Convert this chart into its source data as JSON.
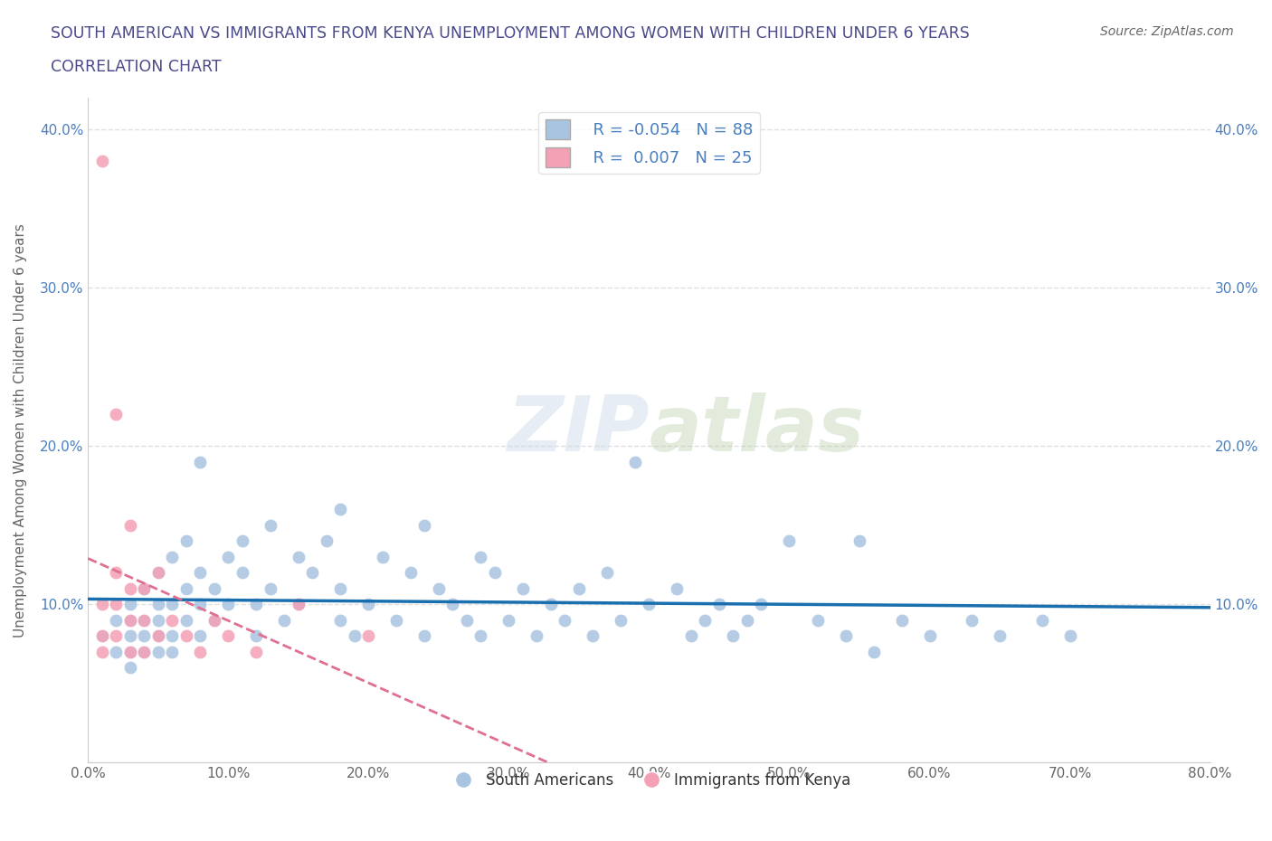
{
  "title_line1": "SOUTH AMERICAN VS IMMIGRANTS FROM KENYA UNEMPLOYMENT AMONG WOMEN WITH CHILDREN UNDER 6 YEARS",
  "title_line2": "CORRELATION CHART",
  "source": "Source: ZipAtlas.com",
  "ylabel": "Unemployment Among Women with Children Under 6 years",
  "xlim": [
    0.0,
    0.8
  ],
  "ylim": [
    0.0,
    0.42
  ],
  "xticks": [
    0.0,
    0.1,
    0.2,
    0.3,
    0.4,
    0.5,
    0.6,
    0.7,
    0.8
  ],
  "xticklabels": [
    "0.0%",
    "10.0%",
    "20.0%",
    "30.0%",
    "40.0%",
    "50.0%",
    "60.0%",
    "70.0%",
    "80.0%"
  ],
  "yticks": [
    0.0,
    0.1,
    0.2,
    0.3,
    0.4
  ],
  "yticklabels": [
    "",
    "10.0%",
    "20.0%",
    "30.0%",
    "40.0%"
  ],
  "blue_color": "#a8c4e0",
  "pink_color": "#f4a0b5",
  "blue_line_color": "#1a6faf",
  "pink_line_color": "#e07090",
  "R_blue": -0.054,
  "N_blue": 88,
  "R_pink": 0.007,
  "N_pink": 25,
  "watermark_zip": "ZIP",
  "watermark_atlas": "atlas",
  "title_color": "#4a4a8a",
  "axis_color": "#666666",
  "grid_color": "#e0e0e0",
  "blue_scatter_x": [
    0.01,
    0.02,
    0.02,
    0.03,
    0.03,
    0.03,
    0.03,
    0.03,
    0.04,
    0.04,
    0.04,
    0.04,
    0.05,
    0.05,
    0.05,
    0.05,
    0.05,
    0.06,
    0.06,
    0.06,
    0.06,
    0.07,
    0.07,
    0.07,
    0.08,
    0.08,
    0.08,
    0.09,
    0.09,
    0.1,
    0.1,
    0.11,
    0.11,
    0.12,
    0.12,
    0.13,
    0.13,
    0.14,
    0.15,
    0.15,
    0.16,
    0.17,
    0.18,
    0.18,
    0.19,
    0.2,
    0.21,
    0.22,
    0.23,
    0.24,
    0.25,
    0.26,
    0.27,
    0.28,
    0.28,
    0.29,
    0.3,
    0.31,
    0.32,
    0.33,
    0.34,
    0.35,
    0.36,
    0.37,
    0.38,
    0.4,
    0.42,
    0.43,
    0.44,
    0.45,
    0.46,
    0.47,
    0.48,
    0.5,
    0.52,
    0.54,
    0.56,
    0.58,
    0.6,
    0.63,
    0.65,
    0.68,
    0.7,
    0.55,
    0.39,
    0.24,
    0.18,
    0.08
  ],
  "blue_scatter_y": [
    0.08,
    0.09,
    0.07,
    0.1,
    0.08,
    0.07,
    0.09,
    0.06,
    0.11,
    0.08,
    0.09,
    0.07,
    0.12,
    0.09,
    0.08,
    0.1,
    0.07,
    0.13,
    0.1,
    0.08,
    0.07,
    0.14,
    0.11,
    0.09,
    0.12,
    0.1,
    0.08,
    0.11,
    0.09,
    0.13,
    0.1,
    0.14,
    0.12,
    0.1,
    0.08,
    0.15,
    0.11,
    0.09,
    0.13,
    0.1,
    0.12,
    0.14,
    0.09,
    0.11,
    0.08,
    0.1,
    0.13,
    0.09,
    0.12,
    0.08,
    0.11,
    0.1,
    0.09,
    0.13,
    0.08,
    0.12,
    0.09,
    0.11,
    0.08,
    0.1,
    0.09,
    0.11,
    0.08,
    0.12,
    0.09,
    0.1,
    0.11,
    0.08,
    0.09,
    0.1,
    0.08,
    0.09,
    0.1,
    0.14,
    0.09,
    0.08,
    0.07,
    0.09,
    0.08,
    0.09,
    0.08,
    0.09,
    0.08,
    0.14,
    0.19,
    0.15,
    0.16,
    0.19
  ],
  "pink_scatter_x": [
    0.01,
    0.01,
    0.01,
    0.01,
    0.02,
    0.02,
    0.02,
    0.02,
    0.03,
    0.03,
    0.03,
    0.03,
    0.04,
    0.04,
    0.04,
    0.05,
    0.05,
    0.06,
    0.07,
    0.08,
    0.09,
    0.1,
    0.12,
    0.15,
    0.2
  ],
  "pink_scatter_y": [
    0.38,
    0.1,
    0.08,
    0.07,
    0.22,
    0.12,
    0.1,
    0.08,
    0.15,
    0.11,
    0.09,
    0.07,
    0.11,
    0.09,
    0.07,
    0.12,
    0.08,
    0.09,
    0.08,
    0.07,
    0.09,
    0.08,
    0.07,
    0.1,
    0.08
  ]
}
